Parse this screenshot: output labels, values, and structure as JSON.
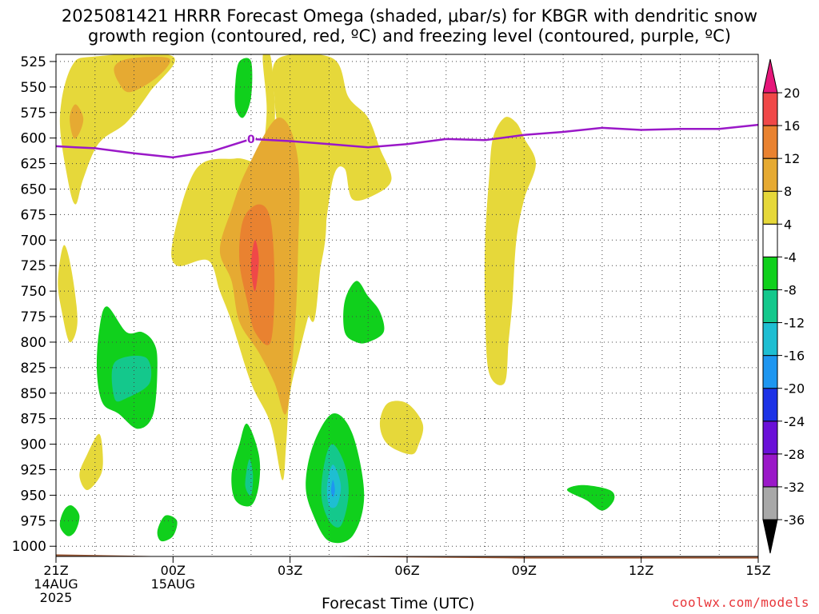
{
  "title": {
    "line1": "2025081421 HRRR Forecast Omega (shaded, μbar/s) for KBGR with dendritic snow",
    "line2": "growth region (contoured, red, ºC) and freezing level (contoured, purple, ºC)"
  },
  "credit": "coolwx.com/models",
  "chart_data": {
    "type": "heatmap",
    "xlabel": "Forecast Time (UTC)",
    "ylabel": "",
    "y_axis": {
      "scale": "pressure (inverted)",
      "range": [
        1010,
        518
      ],
      "ticks": [
        525,
        550,
        575,
        600,
        625,
        650,
        675,
        700,
        725,
        750,
        775,
        800,
        825,
        850,
        875,
        900,
        925,
        950,
        975,
        1000
      ]
    },
    "x_axis": {
      "range_hours": [
        0,
        18
      ],
      "ticks": [
        {
          "hour": 0,
          "label": "21Z",
          "sub": [
            "14AUG",
            "2025"
          ]
        },
        {
          "hour": 3,
          "label": "00Z",
          "sub": [
            "15AUG"
          ]
        },
        {
          "hour": 6,
          "label": "03Z",
          "sub": []
        },
        {
          "hour": 9,
          "label": "06Z",
          "sub": []
        },
        {
          "hour": 12,
          "label": "09Z",
          "sub": []
        },
        {
          "hour": 15,
          "label": "12Z",
          "sub": []
        },
        {
          "hour": 18,
          "label": "15Z",
          "sub": []
        }
      ]
    },
    "grid": true,
    "colorbar": {
      "levels": [
        -36,
        -32,
        -28,
        -24,
        -20,
        -16,
        -12,
        -8,
        -4,
        4,
        8,
        12,
        16,
        20
      ],
      "colors": [
        "#000000",
        "#a8a8a8",
        "#9a18c8",
        "#6a10d8",
        "#1c32e6",
        "#1e96f0",
        "#1ebed2",
        "#14c88c",
        "#10d01c",
        "#ffffff",
        "#e6d83a",
        "#e6aa32",
        "#e98230",
        "#f04848",
        "#e6177a"
      ]
    },
    "freezing_level": {
      "label": "0",
      "points": [
        [
          0,
          608
        ],
        [
          0.5,
          609
        ],
        [
          1,
          610
        ],
        [
          2,
          615
        ],
        [
          3,
          619
        ],
        [
          4,
          613
        ],
        [
          5,
          601
        ],
        [
          6,
          603
        ],
        [
          7,
          606
        ],
        [
          8,
          609
        ],
        [
          9,
          606
        ],
        [
          10,
          601
        ],
        [
          11,
          602
        ],
        [
          12,
          597
        ],
        [
          13,
          594
        ],
        [
          14,
          590
        ],
        [
          15,
          592
        ],
        [
          16,
          591
        ],
        [
          17,
          591
        ],
        [
          18,
          587
        ]
      ]
    },
    "shaded_regions": [
      {
        "bin": "4 to 8",
        "points": [
          [
            1,
            520
          ],
          [
            3,
            520
          ],
          [
            2.4,
            555
          ],
          [
            1.8,
            585
          ],
          [
            1.1,
            605
          ],
          [
            0.7,
            640
          ],
          [
            0.5,
            665
          ],
          [
            0.3,
            640
          ],
          [
            0.1,
            580
          ],
          [
            0.4,
            530
          ]
        ]
      },
      {
        "bin": "8 to 12",
        "points": [
          [
            1.9,
            522
          ],
          [
            2.9,
            522
          ],
          [
            2.6,
            540
          ],
          [
            1.9,
            555
          ],
          [
            1.6,
            545
          ],
          [
            1.5,
            530
          ]
        ]
      },
      {
        "bin": "8 to 12",
        "points": [
          [
            0.5,
            567
          ],
          [
            0.7,
            580
          ],
          [
            0.6,
            595
          ],
          [
            0.45,
            600
          ],
          [
            0.35,
            580
          ]
        ]
      },
      {
        "bin": "4 to 8",
        "points": [
          [
            0.2,
            705
          ],
          [
            0.4,
            730
          ],
          [
            0.55,
            780
          ],
          [
            0.35,
            800
          ],
          [
            0.15,
            770
          ],
          [
            0.05,
            740
          ]
        ]
      },
      {
        "bin": "4 to 8",
        "points": [
          [
            5.3,
            520
          ],
          [
            5.5,
            520
          ],
          [
            5.6,
            560
          ],
          [
            5.6,
            590
          ],
          [
            5.5,
            610
          ],
          [
            6,
            600
          ],
          [
            6.5,
            580
          ],
          [
            6.8,
            630
          ],
          [
            6.9,
            700
          ],
          [
            6.3,
            800
          ],
          [
            6,
            850
          ],
          [
            5.9,
            900
          ],
          [
            5.8,
            935
          ],
          [
            5.5,
            880
          ],
          [
            5,
            840
          ],
          [
            4.5,
            780
          ],
          [
            4.2,
            750
          ],
          [
            3.9,
            720
          ],
          [
            3.1,
            725
          ],
          [
            3,
            700
          ],
          [
            3.6,
            630
          ],
          [
            4.6,
            620
          ],
          [
            5.2,
            620
          ],
          [
            5.4,
            575
          ]
        ]
      },
      {
        "bin": "4 to 8",
        "points": [
          [
            5.7,
            522
          ],
          [
            7.1,
            522
          ],
          [
            7.5,
            560
          ],
          [
            8,
            580
          ],
          [
            8.3,
            610
          ],
          [
            8.6,
            640
          ],
          [
            8.2,
            655
          ],
          [
            7.6,
            660
          ],
          [
            7.4,
            630
          ],
          [
            7.1,
            640
          ],
          [
            6.8,
            720
          ],
          [
            6.6,
            780
          ],
          [
            6.3,
            740
          ],
          [
            6.3,
            670
          ],
          [
            6.5,
            620
          ],
          [
            5.8,
            600
          ],
          [
            5.6,
            560
          ]
        ]
      },
      {
        "bin": "8 to 12",
        "points": [
          [
            4.9,
            630
          ],
          [
            5.7,
            580
          ],
          [
            6.2,
            620
          ],
          [
            6.2,
            720
          ],
          [
            6.1,
            800
          ],
          [
            5.9,
            870
          ],
          [
            5.6,
            840
          ],
          [
            5.2,
            810
          ],
          [
            4.7,
            780
          ],
          [
            4.5,
            740
          ],
          [
            4.2,
            710
          ],
          [
            4.5,
            670
          ]
        ]
      },
      {
        "bin": "12 to 16",
        "points": [
          [
            4.8,
            680
          ],
          [
            5.2,
            665
          ],
          [
            5.5,
            680
          ],
          [
            5.6,
            740
          ],
          [
            5.5,
            800
          ],
          [
            5.1,
            790
          ],
          [
            4.9,
            760
          ],
          [
            4.7,
            720
          ]
        ]
      },
      {
        "bin": "16 to 20",
        "points": [
          [
            5.1,
            700
          ],
          [
            5.2,
            720
          ],
          [
            5.1,
            750
          ],
          [
            5.0,
            725
          ]
        ]
      },
      {
        "bin": "4 to 8",
        "points": [
          [
            11.8,
            585
          ],
          [
            12.0,
            600
          ],
          [
            12.3,
            625
          ],
          [
            12.0,
            660
          ],
          [
            11.8,
            700
          ],
          [
            11.7,
            760
          ],
          [
            11.6,
            800
          ],
          [
            11.5,
            840
          ],
          [
            11.1,
            830
          ],
          [
            11.0,
            770
          ],
          [
            11.0,
            700
          ],
          [
            11.1,
            640
          ],
          [
            11.2,
            600
          ],
          [
            11.5,
            580
          ]
        ]
      },
      {
        "bin": "4 to 8",
        "points": [
          [
            9.0,
            860
          ],
          [
            9.4,
            880
          ],
          [
            9.3,
            900
          ],
          [
            9.1,
            910
          ],
          [
            8.5,
            900
          ],
          [
            8.3,
            880
          ],
          [
            8.5,
            860
          ]
        ]
      },
      {
        "bin": "4 to 8",
        "points": [
          [
            1.1,
            890
          ],
          [
            1.2,
            910
          ],
          [
            1.15,
            930
          ],
          [
            0.8,
            945
          ],
          [
            0.6,
            930
          ],
          [
            0.8,
            910
          ]
        ]
      },
      {
        "bin": "-8 to -4",
        "points": [
          [
            2.5,
            800
          ],
          [
            2.6,
            820
          ],
          [
            2.5,
            870
          ],
          [
            2.1,
            885
          ],
          [
            1.6,
            870
          ],
          [
            1.2,
            860
          ],
          [
            1.05,
            830
          ],
          [
            1.1,
            790
          ],
          [
            1.3,
            765
          ],
          [
            1.8,
            790
          ],
          [
            2.2,
            790
          ]
        ]
      },
      {
        "bin": "-12 to -8",
        "points": [
          [
            1.5,
            820
          ],
          [
            2.3,
            815
          ],
          [
            2.4,
            840
          ],
          [
            1.8,
            855
          ],
          [
            1.5,
            855
          ]
        ]
      },
      {
        "bin": "-8 to -4",
        "points": [
          [
            4.7,
            525
          ],
          [
            5.0,
            525
          ],
          [
            5.0,
            560
          ],
          [
            4.8,
            580
          ],
          [
            4.6,
            570
          ],
          [
            4.6,
            545
          ]
        ]
      },
      {
        "bin": "-8 to -4",
        "points": [
          [
            8.0,
            755
          ],
          [
            8.3,
            770
          ],
          [
            8.4,
            790
          ],
          [
            8.0,
            800
          ],
          [
            7.7,
            800
          ],
          [
            7.4,
            790
          ],
          [
            7.4,
            760
          ],
          [
            7.7,
            740
          ]
        ]
      },
      {
        "bin": "-8 to -4",
        "points": [
          [
            7.1,
            870
          ],
          [
            7.6,
            890
          ],
          [
            7.9,
            950
          ],
          [
            7.6,
            990
          ],
          [
            7.0,
            995
          ],
          [
            6.6,
            970
          ],
          [
            6.4,
            940
          ],
          [
            6.6,
            900
          ]
        ]
      },
      {
        "bin": "-12 to -8",
        "points": [
          [
            7.1,
            900
          ],
          [
            7.4,
            920
          ],
          [
            7.5,
            950
          ],
          [
            7.3,
            980
          ],
          [
            7.0,
            975
          ],
          [
            6.8,
            950
          ],
          [
            6.9,
            915
          ]
        ]
      },
      {
        "bin": "-16 to -12",
        "points": [
          [
            7.1,
            920
          ],
          [
            7.3,
            940
          ],
          [
            7.2,
            960
          ],
          [
            7.0,
            960
          ],
          [
            6.95,
            940
          ]
        ]
      },
      {
        "bin": "-20 to -16",
        "points": [
          [
            7.1,
            935
          ],
          [
            7.15,
            945
          ],
          [
            7.1,
            952
          ],
          [
            7.05,
            945
          ]
        ]
      },
      {
        "bin": "-8 to -4",
        "points": [
          [
            4.9,
            880
          ],
          [
            5.2,
            910
          ],
          [
            5.2,
            940
          ],
          [
            5.0,
            960
          ],
          [
            4.6,
            955
          ],
          [
            4.5,
            930
          ],
          [
            4.7,
            900
          ]
        ]
      },
      {
        "bin": "-12 to -8",
        "points": [
          [
            4.95,
            915
          ],
          [
            5.05,
            930
          ],
          [
            5.0,
            950
          ],
          [
            4.85,
            940
          ]
        ]
      },
      {
        "bin": "-8 to -4",
        "points": [
          [
            0.4,
            960
          ],
          [
            0.6,
            970
          ],
          [
            0.5,
            985
          ],
          [
            0.3,
            990
          ],
          [
            0.1,
            980
          ],
          [
            0.2,
            965
          ]
        ]
      },
      {
        "bin": "-8 to -4",
        "points": [
          [
            2.8,
            970
          ],
          [
            3.1,
            975
          ],
          [
            3.0,
            990
          ],
          [
            2.7,
            995
          ],
          [
            2.6,
            985
          ]
        ]
      },
      {
        "bin": "-8 to -4",
        "points": [
          [
            13.5,
            940
          ],
          [
            14.2,
            945
          ],
          [
            14.3,
            955
          ],
          [
            14,
            965
          ],
          [
            13.6,
            955
          ],
          [
            13.1,
            945
          ]
        ]
      }
    ],
    "terrain": {
      "color": "#9a5a38",
      "surface": [
        [
          0,
          1008
        ],
        [
          3,
          1010
        ],
        [
          6,
          1010
        ],
        [
          9,
          1011
        ],
        [
          12,
          1012
        ],
        [
          15,
          1012
        ],
        [
          18,
          1012
        ]
      ]
    }
  }
}
